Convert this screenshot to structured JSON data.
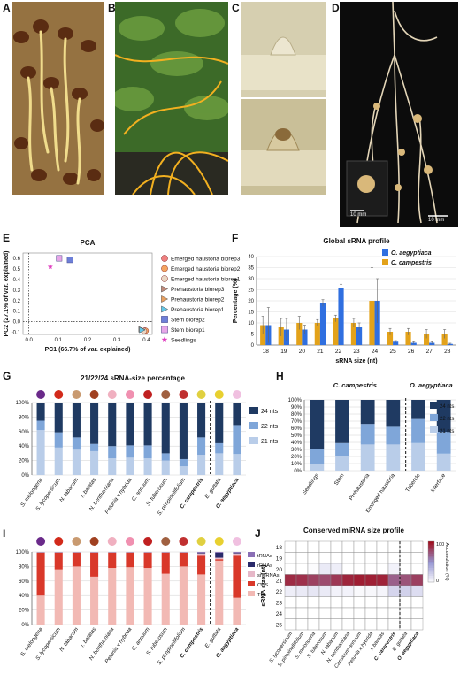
{
  "panel_letters": {
    "A": "A",
    "B": "B",
    "C": "C",
    "D": "D",
    "E": "E",
    "F": "F",
    "G": "G",
    "H": "H",
    "I": "I",
    "J": "J"
  },
  "photos": {
    "A": {
      "bg": "#8a6a3c",
      "accent": "#e8cf7a"
    },
    "B": {
      "bg": "#2f5a1e",
      "accent": "#e9a61f"
    },
    "C": {
      "bg": "#cfc7a6",
      "accent": "#b8a26a"
    },
    "D": {
      "bg": "#101010",
      "accent": "#d9c8a8",
      "inset_scale": "10 mm",
      "scale": "10 mm"
    }
  },
  "chart_data": [
    {
      "panel": "E",
      "type": "scatter",
      "title": "PCA",
      "xlabel": "PC1 (66.7% of var. explained)",
      "ylabel": "PC2 (27.1% of var. explained)",
      "xlim": [
        -0.02,
        0.42
      ],
      "ylim": [
        -0.12,
        0.65
      ],
      "xticks": [
        "0.0",
        "0.1",
        "0.2",
        "0.3",
        "0.4"
      ],
      "xtick_values": [
        0,
        0.1,
        0.2,
        0.3,
        0.4
      ],
      "yticks": [
        "-0.1",
        "0.0",
        "0.1",
        "0.2",
        "0.3",
        "0.4",
        "0.5",
        "0.6"
      ],
      "ytick_values": [
        -0.1,
        0,
        0.1,
        0.2,
        0.3,
        0.4,
        0.5,
        0.6
      ],
      "series": [
        {
          "name": "Emerged haustoria biorep3",
          "marker": "circle",
          "color": "#f08080",
          "points": [
            [
              0.395,
              -0.083
            ]
          ]
        },
        {
          "name": "Emerged haustoria biorep2",
          "marker": "circle",
          "color": "#f4a460",
          "points": [
            [
              0.398,
              -0.085
            ]
          ]
        },
        {
          "name": "Emerged haustoria biorep1",
          "marker": "circle",
          "color": "#e9d6c3",
          "points": [
            [
              0.392,
              -0.087
            ]
          ]
        },
        {
          "name": "Prehaustoria biorep3",
          "marker": "triangle",
          "color": "#c08a7a",
          "points": [
            [
              0.384,
              -0.072
            ]
          ]
        },
        {
          "name": "Prehaustoria biorep2",
          "marker": "triangle",
          "color": "#e8a060",
          "points": [
            [
              0.387,
              -0.076
            ]
          ]
        },
        {
          "name": "Prehaustoria biorep1",
          "marker": "triangle",
          "color": "#62c7e8",
          "points": [
            [
              0.386,
              -0.078
            ]
          ]
        },
        {
          "name": "Stem biorep2",
          "marker": "square",
          "color": "#6d7fd8",
          "points": [
            [
              0.14,
              0.585
            ]
          ]
        },
        {
          "name": "Stem biorep1",
          "marker": "square",
          "color": "#e7a6e8",
          "points": [
            [
              0.103,
              0.6
            ]
          ]
        },
        {
          "name": "Seedlings",
          "marker": "star",
          "color": "#e040c0",
          "points": [
            [
              0.073,
              0.52
            ]
          ]
        }
      ]
    },
    {
      "panel": "F",
      "type": "bar",
      "title": "Global sRNA profile",
      "xlabel": "sRNA size (nt)",
      "ylabel": "Percentage (%)",
      "ylim": [
        0,
        40
      ],
      "yticks": [
        "0",
        "5",
        "10",
        "15",
        "20",
        "25",
        "30",
        "35",
        "40"
      ],
      "ytick_values": [
        0,
        5,
        10,
        15,
        20,
        25,
        30,
        35,
        40
      ],
      "categories": [
        "18",
        "19",
        "20",
        "21",
        "22",
        "23",
        "24",
        "25",
        "26",
        "27",
        "28"
      ],
      "series": [
        {
          "name": "C. campestris",
          "color": "#e3a21a",
          "values": [
            9,
            8,
            10,
            10,
            12,
            10,
            20,
            6,
            6,
            5,
            5
          ],
          "errors": [
            4,
            4,
            3,
            1.5,
            1.5,
            2,
            15,
            1.5,
            1.5,
            2,
            2
          ]
        },
        {
          "name": "O. aegyptiaca",
          "color": "#2f6fe0",
          "values": [
            9,
            7,
            7,
            19,
            26,
            8,
            20,
            1.5,
            1,
            1,
            0.5
          ],
          "errors": [
            8,
            5,
            2,
            1.5,
            1.5,
            2,
            10,
            0.5,
            0.5,
            0.5,
            0.3
          ]
        }
      ]
    },
    {
      "panel": "G",
      "type": "bar",
      "stacked": true,
      "title": "21/22/24 sRNA-size percentage",
      "yticks": [
        "0%",
        "20%",
        "40%",
        "60%",
        "80%",
        "100%"
      ],
      "ytick_values": [
        0,
        20,
        40,
        60,
        80,
        100
      ],
      "categories": [
        "S. melongena",
        "S. lycopersicum",
        "N. tabacum",
        "I. batatas",
        "N. benthamiana",
        "Petunia x hybrida",
        "C. annuum",
        "S. tuberosum",
        "S. pimpinellifolium",
        "C. campestris",
        "E. guttata",
        "O. aegyptiaca"
      ],
      "bold_categories": [
        "C. campestris",
        "O. aegyptiaca"
      ],
      "divider_after": "C. campestris",
      "series": [
        {
          "name": "21 nts",
          "color": "#b9cde9",
          "values": [
            62,
            38,
            35,
            33,
            23,
            24,
            23,
            20,
            12,
            28,
            30,
            29
          ]
        },
        {
          "name": "22 nts",
          "color": "#7fa6d9",
          "values": [
            13,
            21,
            17,
            10,
            17,
            17,
            18,
            10,
            10,
            24,
            14,
            40
          ]
        },
        {
          "name": "24 nts",
          "color": "#1f3a62",
          "values": [
            25,
            41,
            48,
            57,
            60,
            59,
            59,
            70,
            78,
            48,
            56,
            31
          ]
        }
      ]
    },
    {
      "panel": "H",
      "type": "bar",
      "stacked": true,
      "yticks": [
        "0%",
        "10%",
        "20%",
        "30%",
        "40%",
        "50%",
        "60%",
        "70%",
        "80%",
        "90%",
        "100%"
      ],
      "ytick_values": [
        0,
        10,
        20,
        30,
        40,
        50,
        60,
        70,
        80,
        90,
        100
      ],
      "groups": [
        {
          "label": "C. campestris",
          "count": 4
        },
        {
          "label": "O. aegyptiaca",
          "count": 2
        }
      ],
      "categories": [
        "Seedlings",
        "Stem",
        "Prehaustoria",
        "Emerged haustoria",
        "Tubercle",
        "Interface"
      ],
      "divider_after": "Emerged haustoria",
      "series": [
        {
          "name": "21 nts",
          "color": "#b9cde9",
          "values": [
            10,
            20,
            37,
            37,
            39,
            24
          ]
        },
        {
          "name": "22 nts",
          "color": "#7fa6d9",
          "values": [
            21,
            19,
            29,
            25,
            34,
            31
          ]
        },
        {
          "name": "24 nts",
          "color": "#1f3a62",
          "values": [
            69,
            61,
            34,
            38,
            27,
            45
          ]
        }
      ]
    },
    {
      "panel": "I",
      "type": "bar",
      "stacked": true,
      "yticks": [
        "0%",
        "20%",
        "40%",
        "60%",
        "80%",
        "100%"
      ],
      "ytick_values": [
        0,
        20,
        40,
        60,
        80,
        100
      ],
      "categories": [
        "S. melongena",
        "S. lycopersicum",
        "N. tabacum",
        "I. batatas",
        "N. benthamiana",
        "Petunia x hybrida",
        "C. annuum",
        "S. tuberosum",
        "S. pimpinellifolium",
        "C. campestris",
        "E. guttata",
        "O. aegyptiaca"
      ],
      "bold_categories": [
        "C. campestris",
        "O. aegyptiaca"
      ],
      "divider_after": "C. campestris",
      "series": [
        {
          "name": "TEs",
          "color": "#f2b9b4",
          "values": [
            40,
            76,
            80,
            66,
            78,
            79,
            78,
            70,
            80,
            69,
            88,
            37
          ]
        },
        {
          "name": "CDS",
          "color": "#d9382a",
          "values": [
            59,
            23,
            19,
            33,
            21,
            20,
            21,
            29,
            19,
            27,
            2,
            59
          ]
        },
        {
          "name": "snoRNAs",
          "color": "#e6b8c8",
          "values": [
            0.5,
            0.5,
            0.5,
            0.5,
            0.5,
            0.5,
            0.5,
            0.5,
            0.5,
            2,
            2,
            2
          ]
        },
        {
          "name": "rRNAs",
          "color": "#2a2a6a",
          "values": [
            0.3,
            0.3,
            0.3,
            0.3,
            0.3,
            0.3,
            0.3,
            0.3,
            0.3,
            1,
            7,
            1
          ]
        },
        {
          "name": "tRNAs",
          "color": "#8a6fb5",
          "values": [
            0.2,
            0.2,
            0.2,
            0.2,
            0.2,
            0.2,
            0.2,
            0.2,
            0.2,
            1,
            1,
            1
          ]
        }
      ],
      "legend_order": [
        "tRNAs",
        "rRNAs",
        "snoRNAs",
        "CDS",
        "TEs"
      ]
    },
    {
      "panel": "J",
      "type": "heatmap",
      "title": "Conserved miRNA size profile",
      "ylabel": "sRNA size (nt)",
      "rows": [
        "18",
        "19",
        "20",
        "21",
        "22",
        "23",
        "24",
        "25"
      ],
      "columns": [
        "S. lycopersicum",
        "S. pimpinellifolium",
        "S. melongena",
        "S. tuberosum",
        "N. tabacum",
        "N. benthamiana",
        "Capsicum annuum",
        "Petunia x hybrida",
        "I. batatas",
        "C. campestris",
        "E. guttata",
        "O. aegyptiaca"
      ],
      "bold_columns": [
        "C. campestris",
        "O. aegyptiaca"
      ],
      "divider_after": "C. campestris",
      "colorbar": {
        "label": "Accumulation (%)",
        "min": 0,
        "max": 100,
        "ticks": [
          "0",
          "100"
        ],
        "low": "#ffffff",
        "high": "#a01020"
      },
      "values": [
        [
          0,
          0,
          0,
          0,
          0,
          0,
          0,
          0,
          0,
          0,
          0,
          0
        ],
        [
          0,
          0,
          0,
          0,
          0,
          0,
          0,
          0,
          0,
          0,
          0,
          0
        ],
        [
          0,
          0,
          2,
          10,
          8,
          0,
          0,
          0,
          0,
          6,
          0,
          0
        ],
        [
          90,
          88,
          82,
          78,
          85,
          92,
          95,
          94,
          93,
          70,
          75,
          82
        ],
        [
          8,
          10,
          12,
          10,
          6,
          6,
          3,
          4,
          5,
          20,
          22,
          16
        ],
        [
          0,
          0,
          0,
          0,
          0,
          0,
          0,
          0,
          0,
          0,
          0,
          0
        ],
        [
          0,
          0,
          0,
          0,
          0,
          0,
          0,
          0,
          0,
          0,
          0,
          0
        ],
        [
          0,
          0,
          0,
          0,
          0,
          0,
          0,
          0,
          0,
          0,
          0,
          0
        ]
      ]
    }
  ]
}
